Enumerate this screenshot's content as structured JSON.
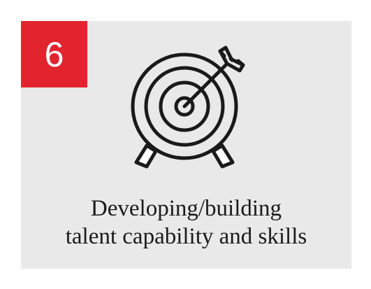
{
  "badge": {
    "number": "6",
    "color": "#e1242e"
  },
  "icon": {
    "name": "target-with-arrow-icon"
  },
  "caption": {
    "line1": "Developing/building",
    "line2": "talent capability and skills"
  },
  "colors": {
    "card_background": "#e9e9ea",
    "text": "#1a1a1a",
    "icon_stroke": "#1a1a1a"
  }
}
